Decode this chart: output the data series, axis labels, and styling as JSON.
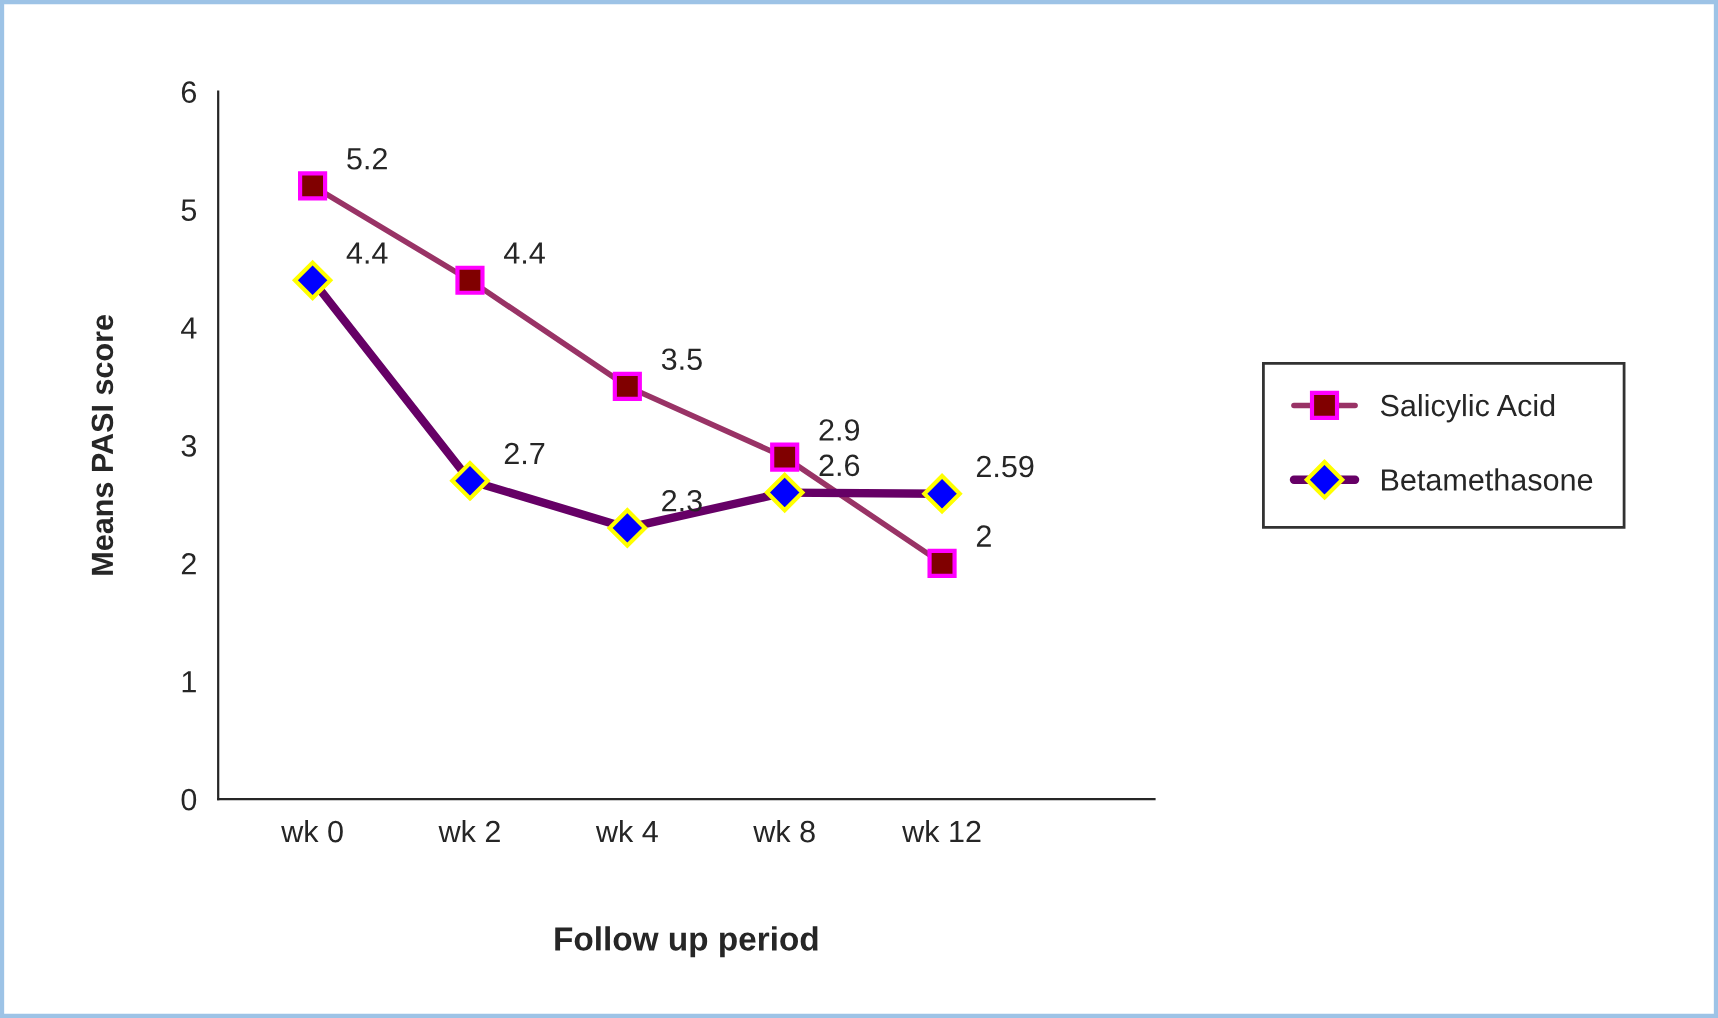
{
  "chart_data": {
    "type": "line",
    "xlabel": "Follow up period",
    "ylabel": "Means PASI score",
    "categories": [
      "wk 0",
      "wk 2",
      "wk 4",
      "wk 8",
      "wk 12"
    ],
    "series": [
      {
        "name": "Salicylic Acid",
        "color": "#993366",
        "marker": "square",
        "values": [
          5.2,
          4.4,
          3.5,
          2.9,
          2
        ]
      },
      {
        "name": "Betamethasone",
        "color": "#660066",
        "marker": "diamond",
        "values": [
          4.4,
          2.7,
          2.3,
          2.6,
          2.59
        ]
      }
    ],
    "ylim": [
      0,
      6
    ],
    "yticks": [
      0,
      1,
      2,
      3,
      4,
      5,
      6
    ],
    "data_labels": true,
    "legend": "right",
    "grid": false
  }
}
